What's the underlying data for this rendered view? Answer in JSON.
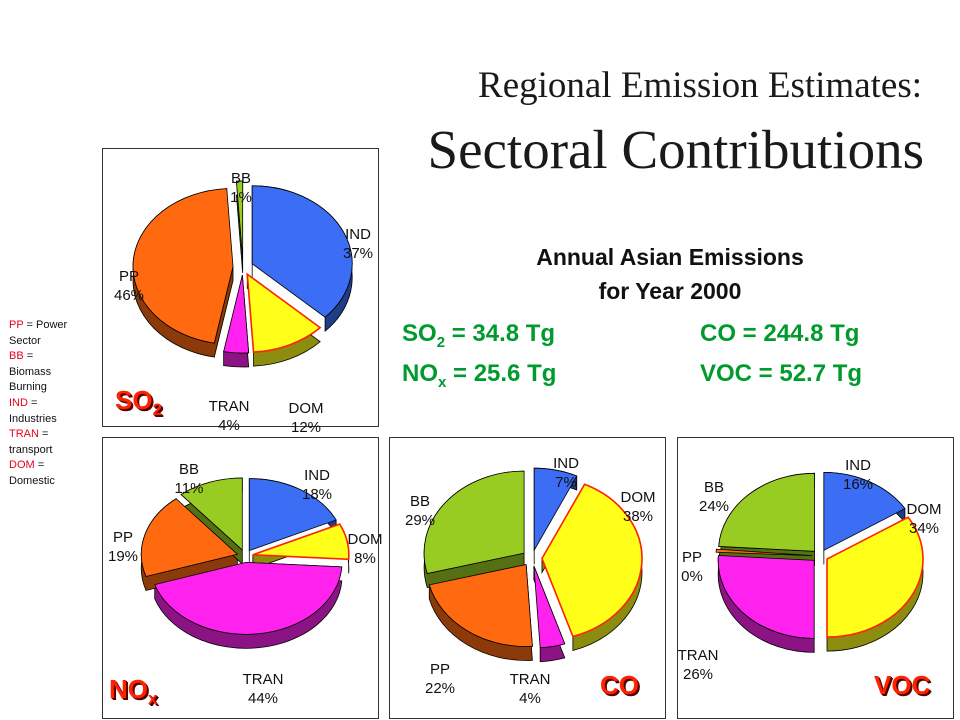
{
  "title": {
    "line1": "Regional Emission Estimates:",
    "line2": "Sectoral Contributions"
  },
  "legend": [
    {
      "abbr": "PP",
      "text": " = Power Sector"
    },
    {
      "abbr": "BB",
      "text": " = Biomass Burning"
    },
    {
      "abbr": "IND",
      "text": " = Industries"
    },
    {
      "abbr": "TRAN",
      "text": " = transport"
    },
    {
      "abbr": "DOM",
      "text": " = Domestic"
    }
  ],
  "annual": {
    "line1": "Annual Asian Emissions",
    "line2": "for Year 2000",
    "so2": {
      "label": "SO",
      "sub": "2",
      "value": " =  34.8 Tg"
    },
    "nox": {
      "label": "NO",
      "sub": "x",
      "value": " = 25.6 Tg"
    },
    "co": {
      "text": "CO =  244.8 Tg"
    },
    "voc": {
      "text": "VOC = 52.7 Tg"
    }
  },
  "colors": {
    "IND": "#3b6ef5",
    "DOM": "#ffff1a",
    "TRAN": "#ff22ee",
    "PP": "#ff6a10",
    "BB": "#99cc22",
    "title_label": "#ff2200",
    "emissions_text": "#009a2e"
  },
  "chart_data": [
    {
      "type": "pie",
      "title": "SO2",
      "title_main": "SO",
      "title_sub": "2",
      "slices": [
        {
          "name": "IND",
          "value": 37,
          "label": "37%"
        },
        {
          "name": "DOM",
          "value": 12,
          "label": "12%"
        },
        {
          "name": "TRAN",
          "value": 4,
          "label": "4%"
        },
        {
          "name": "PP",
          "value": 46,
          "label": "46%"
        },
        {
          "name": "BB",
          "value": 1,
          "label": "1%"
        }
      ]
    },
    {
      "type": "pie",
      "title": "NOx",
      "title_main": "NO",
      "title_sub": "x",
      "slices": [
        {
          "name": "IND",
          "value": 18,
          "label": "18%"
        },
        {
          "name": "DOM",
          "value": 8,
          "label": "8%"
        },
        {
          "name": "TRAN",
          "value": 44,
          "label": "44%"
        },
        {
          "name": "PP",
          "value": 19,
          "label": "19%"
        },
        {
          "name": "BB",
          "value": 11,
          "label": "11%"
        }
      ]
    },
    {
      "type": "pie",
      "title": "CO",
      "title_main": "CO",
      "title_sub": "",
      "slices": [
        {
          "name": "IND",
          "value": 7,
          "label": "7%"
        },
        {
          "name": "DOM",
          "value": 38,
          "label": "38%"
        },
        {
          "name": "TRAN",
          "value": 4,
          "label": "4%"
        },
        {
          "name": "PP",
          "value": 22,
          "label": "22%"
        },
        {
          "name": "BB",
          "value": 29,
          "label": "29%"
        }
      ]
    },
    {
      "type": "pie",
      "title": "VOC",
      "title_main": "VOC",
      "title_sub": "",
      "slices": [
        {
          "name": "IND",
          "value": 16,
          "label": "16%"
        },
        {
          "name": "DOM",
          "value": 34,
          "label": "34%"
        },
        {
          "name": "TRAN",
          "value": 26,
          "label": "26%"
        },
        {
          "name": "PP",
          "value": 0,
          "label": "0%"
        },
        {
          "name": "BB",
          "value": 24,
          "label": "24%"
        }
      ]
    }
  ]
}
